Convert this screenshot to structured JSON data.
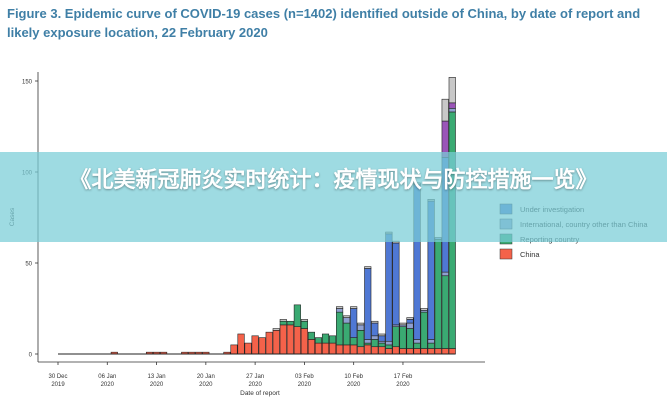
{
  "figure_title": "Figure 3. Epidemic curve of COVID-19 cases (n=1402) identified outside of China, by date of report and likely exposure location, 22 February 2020",
  "overlay_banner": "《北美新冠肺炎实时统计：疫情现状与防控措施一览》",
  "colors": {
    "china": "#f4624a",
    "reporting": "#3aaa72",
    "international": "#8fa0d0",
    "investigation": "#4f78d4",
    "purple": "#9a55b8",
    "grey": "#c8c8c8",
    "title": "#3f7fa6"
  },
  "chart_data": {
    "type": "bar",
    "stacked": true,
    "xlabel": "Date of report",
    "ylabel": "Cases",
    "ylim": [
      0,
      155
    ],
    "yticks": [
      0,
      50,
      100,
      150
    ],
    "xticks": [
      {
        "line1": "30 Dec",
        "line2": "2019",
        "day": 0
      },
      {
        "line1": "06 Jan",
        "line2": "2020",
        "day": 7
      },
      {
        "line1": "13 Jan",
        "line2": "2020",
        "day": 14
      },
      {
        "line1": "20 Jan",
        "line2": "2020",
        "day": 21
      },
      {
        "line1": "27 Jan",
        "line2": "2020",
        "day": 28
      },
      {
        "line1": "03 Feb",
        "line2": "2020",
        "day": 35
      },
      {
        "line1": "10 Feb",
        "line2": "2020",
        "day": 42
      },
      {
        "line1": "17 Feb",
        "line2": "2020",
        "day": 49
      }
    ],
    "legend": {
      "placement": "right",
      "entries": [
        {
          "label": "Under investigation",
          "color": "#4f78d4"
        },
        {
          "label": "International, country other than China",
          "color": "#8fa0d0"
        },
        {
          "label": "Reporting country",
          "color": "#3aaa72"
        },
        {
          "label": "China",
          "color": "#f4624a"
        }
      ]
    },
    "series_order": [
      "china",
      "reporting",
      "international",
      "investigation",
      "purple",
      "grey"
    ],
    "bars": [
      {
        "day": 0,
        "china": 0,
        "reporting": 0,
        "international": 0,
        "investigation": 0,
        "purple": 0,
        "grey": 0
      },
      {
        "day": 8,
        "china": 1,
        "reporting": 0,
        "international": 0,
        "investigation": 0,
        "purple": 0,
        "grey": 0
      },
      {
        "day": 13,
        "china": 1,
        "reporting": 0,
        "international": 0,
        "investigation": 0,
        "purple": 0,
        "grey": 0
      },
      {
        "day": 14,
        "china": 1,
        "reporting": 0,
        "international": 0,
        "investigation": 0,
        "purple": 0,
        "grey": 0
      },
      {
        "day": 15,
        "china": 1,
        "reporting": 0,
        "international": 0,
        "investigation": 0,
        "purple": 0,
        "grey": 0
      },
      {
        "day": 18,
        "china": 1,
        "reporting": 0,
        "international": 0,
        "investigation": 0,
        "purple": 0,
        "grey": 0
      },
      {
        "day": 19,
        "china": 1,
        "reporting": 0,
        "international": 0,
        "investigation": 0,
        "purple": 0,
        "grey": 0
      },
      {
        "day": 20,
        "china": 1,
        "reporting": 0,
        "international": 0,
        "investigation": 0,
        "purple": 0,
        "grey": 0
      },
      {
        "day": 21,
        "china": 1,
        "reporting": 0,
        "international": 0,
        "investigation": 0,
        "purple": 0,
        "grey": 0
      },
      {
        "day": 24,
        "china": 1,
        "reporting": 0,
        "international": 0,
        "investigation": 0,
        "purple": 0,
        "grey": 0
      },
      {
        "day": 25,
        "china": 5,
        "reporting": 0,
        "international": 0,
        "investigation": 0,
        "purple": 0,
        "grey": 0
      },
      {
        "day": 26,
        "china": 11,
        "reporting": 0,
        "international": 0,
        "investigation": 0,
        "purple": 0,
        "grey": 0
      },
      {
        "day": 27,
        "china": 6,
        "reporting": 0,
        "international": 0,
        "investigation": 0,
        "purple": 0,
        "grey": 0
      },
      {
        "day": 28,
        "china": 10,
        "reporting": 0,
        "international": 0,
        "investigation": 0,
        "purple": 0,
        "grey": 0
      },
      {
        "day": 29,
        "china": 9,
        "reporting": 0,
        "international": 0,
        "investigation": 0,
        "purple": 0,
        "grey": 0
      },
      {
        "day": 30,
        "china": 12,
        "reporting": 0,
        "international": 0,
        "investigation": 0,
        "purple": 0,
        "grey": 0
      },
      {
        "day": 31,
        "china": 13,
        "reporting": 0,
        "international": 0,
        "investigation": 0,
        "purple": 0,
        "grey": 1
      },
      {
        "day": 32,
        "china": 16,
        "reporting": 2,
        "international": 0,
        "investigation": 0,
        "purple": 0,
        "grey": 1
      },
      {
        "day": 33,
        "china": 16,
        "reporting": 2,
        "international": 0,
        "investigation": 0,
        "purple": 0,
        "grey": 0
      },
      {
        "day": 34,
        "china": 15,
        "reporting": 12,
        "international": 0,
        "investigation": 0,
        "purple": 0,
        "grey": 0
      },
      {
        "day": 35,
        "china": 14,
        "reporting": 4,
        "international": 0,
        "investigation": 0,
        "purple": 0,
        "grey": 1
      },
      {
        "day": 36,
        "china": 8,
        "reporting": 4,
        "international": 0,
        "investigation": 0,
        "purple": 0,
        "grey": 0
      },
      {
        "day": 37,
        "china": 6,
        "reporting": 3,
        "international": 0,
        "investigation": 0,
        "purple": 0,
        "grey": 0
      },
      {
        "day": 38,
        "china": 6,
        "reporting": 5,
        "international": 0,
        "investigation": 0,
        "purple": 0,
        "grey": 0
      },
      {
        "day": 39,
        "china": 6,
        "reporting": 4,
        "international": 0,
        "investigation": 0,
        "purple": 0,
        "grey": 0
      },
      {
        "day": 40,
        "china": 5,
        "reporting": 18,
        "international": 2,
        "investigation": 0,
        "purple": 0,
        "grey": 1
      },
      {
        "day": 41,
        "china": 5,
        "reporting": 12,
        "international": 3,
        "investigation": 0,
        "purple": 0,
        "grey": 1
      },
      {
        "day": 42,
        "china": 5,
        "reporting": 4,
        "international": 0,
        "investigation": 16,
        "purple": 0,
        "grey": 1
      },
      {
        "day": 43,
        "china": 4,
        "reporting": 9,
        "international": 3,
        "investigation": 0,
        "purple": 0,
        "grey": 1
      },
      {
        "day": 44,
        "china": 5,
        "reporting": 1,
        "international": 2,
        "investigation": 39,
        "purple": 0,
        "grey": 1
      },
      {
        "day": 45,
        "china": 4,
        "reporting": 4,
        "international": 2,
        "investigation": 7,
        "purple": 0,
        "grey": 1
      },
      {
        "day": 46,
        "china": 4,
        "reporting": 2,
        "international": 1,
        "investigation": 3,
        "purple": 0,
        "grey": 1
      },
      {
        "day": 47,
        "china": 3,
        "reporting": 2,
        "international": 2,
        "investigation": 59,
        "purple": 0,
        "grey": 1
      },
      {
        "day": 48,
        "china": 4,
        "reporting": 11,
        "international": 1,
        "investigation": 45,
        "purple": 0,
        "grey": 1
      },
      {
        "day": 49,
        "china": 3,
        "reporting": 12,
        "international": 1,
        "investigation": 0,
        "purple": 0,
        "grey": 1
      },
      {
        "day": 50,
        "china": 3,
        "reporting": 11,
        "international": 3,
        "investigation": 2,
        "purple": 0,
        "grey": 1
      },
      {
        "day": 51,
        "china": 3,
        "reporting": 3,
        "international": 2,
        "investigation": 85,
        "purple": 0,
        "grey": 1
      },
      {
        "day": 52,
        "china": 3,
        "reporting": 20,
        "international": 1,
        "investigation": 0,
        "purple": 0,
        "grey": 1
      },
      {
        "day": 53,
        "china": 3,
        "reporting": 3,
        "international": 2,
        "investigation": 76,
        "purple": 0,
        "grey": 1
      },
      {
        "day": 54,
        "china": 3,
        "reporting": 60,
        "international": 1,
        "investigation": 0,
        "purple": 0,
        "grey": 0
      },
      {
        "day": 55,
        "china": 3,
        "reporting": 40,
        "international": 2,
        "investigation": 63,
        "purple": 20,
        "grey": 12
      },
      {
        "day": 56,
        "china": 3,
        "reporting": 130,
        "international": 2,
        "investigation": 0,
        "purple": 3,
        "grey": 14
      }
    ]
  }
}
